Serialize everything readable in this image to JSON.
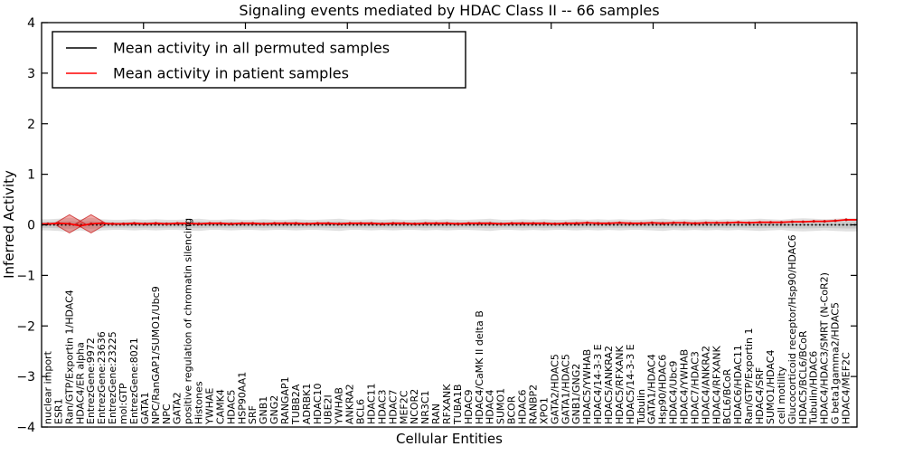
{
  "title": "Signaling events mediated by HDAC Class II -- 66 samples",
  "axes": {
    "x_label": "Cellular Entities",
    "y_label": "Inferred Activity"
  },
  "legend": {
    "permuted_label": "Mean activity in all permuted samples",
    "patient_label": "Mean activity in patient samples"
  },
  "colors": {
    "permuted_line": "#000000",
    "patient_line": "#ff0000",
    "patient_marker": "#d40000",
    "band_outer": "rgba(0,0,0,0.12)",
    "band_inner": "rgba(0,0,0,0.10)",
    "diamond_fill": "rgba(225,45,40,0.40)",
    "diamond_stroke": "rgba(200,30,30,0.75)",
    "spine": "#000000"
  },
  "chart_data": {
    "type": "line",
    "title": "Signaling events mediated by HDAC Class II -- 66 samples",
    "xlabel": "Cellular Entities",
    "ylabel": "Inferred Activity",
    "ylim": [
      -4,
      4
    ],
    "yticks": [
      -4,
      -3,
      -2,
      -1,
      0,
      1,
      2,
      3,
      4
    ],
    "ytick_labels": [
      "−4",
      "−3",
      "−2",
      "−1",
      "0",
      "1",
      "2",
      "3",
      "4"
    ],
    "grid": false,
    "legend_position": "upper left",
    "categories": [
      "nuclear import",
      "ESR1",
      "Ran/GTP/Exportin 1/HDAC4",
      "HDAC4/ER alpha",
      "EntrezGene:9972",
      "EntrezGene:23636",
      "EntrezGene:23225",
      "mol:GTP",
      "EntrezGene:8021",
      "GATA1",
      "NPC/RanGAP1/SUMO1/Ubc9",
      "NPC",
      "GATA2",
      "positive regulation of chromatin silencing",
      "Histones",
      "YWHAE",
      "CAMK4",
      "HDAC5",
      "HSP90AA1",
      "SRF",
      "GNB1",
      "GNG2",
      "RANGAP1",
      "TUBB2A",
      "ADRBK1",
      "HDAC10",
      "UBE2I",
      "YWHAB",
      "ANKRA2",
      "BCL6",
      "HDAC11",
      "HDAC3",
      "HDAC7",
      "MEF2C",
      "NCOR2",
      "NR3C1",
      "RAN",
      "RFXANK",
      "TUBA1B",
      "HDAC9",
      "HDAC4/CaMK II delta B",
      "HDAC4",
      "SUMO1",
      "BCOR",
      "HDAC6",
      "RANBP2",
      "XPO1",
      "GATA2/HDAC5",
      "GATA1/HDAC5",
      "GNB1/GNG2",
      "HDAC5/YWHAB",
      "HDAC4/14-3-3 E",
      "HDAC5/ANKRA2",
      "HDAC5/RFXANK",
      "HDAC5/14-3-3 E",
      "Tubulin",
      "GATA1/HDAC4",
      "Hsp90/HDAC6",
      "HDAC4/Ubc9",
      "HDAC4/YWHAB",
      "HDAC7/HDAC3",
      "HDAC4/ANKRA2",
      "HDAC4/RFXANK",
      "BCL6/BCoR",
      "HDAC6/HDAC11",
      "Ran/GTP/Exportin 1",
      "HDAC4/SRF",
      "SUMO1/HDAC4",
      "cell motility",
      "Glucocorticoid receptor/Hsp90/HDAC6",
      "HDAC5/BCL6/BCoR",
      "Tubulin/HDAC6",
      "HDAC4/HDAC3/SMRT (N-CoR2)",
      "G beta1gamma2/HDAC5",
      "HDAC4/MEF2C"
    ],
    "series": [
      {
        "name": "Mean activity in all permuted samples",
        "color": "#000000",
        "style": "dotted",
        "values": [
          0,
          0,
          0,
          0,
          0,
          0,
          0,
          0,
          0,
          0,
          0,
          0,
          0,
          0,
          0,
          0,
          0,
          0,
          0,
          0,
          0,
          0,
          0,
          0,
          0,
          0,
          0,
          0,
          0,
          0,
          0,
          0,
          0,
          0,
          0,
          0,
          0,
          0,
          0,
          0,
          0,
          0,
          0,
          0,
          0,
          0,
          0,
          0,
          0,
          0,
          0,
          0,
          0,
          0,
          0,
          0,
          0,
          0,
          0,
          0,
          0,
          0,
          0,
          0,
          0,
          0,
          0,
          0,
          0,
          0,
          0,
          0,
          0,
          0,
          0
        ]
      },
      {
        "name": "Mean activity in patient samples",
        "color": "#ff0000",
        "style": "solid",
        "values": [
          0.02,
          0.03,
          0.02,
          -0.02,
          0.02,
          0.03,
          0.02,
          0.02,
          0.03,
          0.02,
          0.03,
          0.02,
          0.03,
          0.03,
          0.02,
          0.03,
          0.03,
          0.02,
          0.03,
          0.03,
          0.02,
          0.03,
          0.03,
          0.03,
          0.02,
          0.03,
          0.03,
          0.02,
          0.03,
          0.03,
          0.03,
          0.02,
          0.03,
          0.03,
          0.02,
          0.03,
          0.03,
          0.03,
          0.02,
          0.03,
          0.03,
          0.03,
          0.02,
          0.03,
          0.03,
          0.03,
          0.03,
          0.02,
          0.03,
          0.03,
          0.04,
          0.03,
          0.03,
          0.04,
          0.03,
          0.03,
          0.04,
          0.03,
          0.04,
          0.04,
          0.03,
          0.04,
          0.04,
          0.04,
          0.05,
          0.04,
          0.05,
          0.05,
          0.05,
          0.06,
          0.06,
          0.07,
          0.07,
          0.08,
          0.1
        ]
      }
    ],
    "permuted_band_half_width": [
      0.11,
      0.12,
      0.14,
      0.11,
      0.14,
      0.11,
      0.1,
      0.1,
      0.11,
      0.1,
      0.11,
      0.1,
      0.1,
      0.11,
      0.12,
      0.1,
      0.1,
      0.11,
      0.1,
      0.1,
      0.11,
      0.1,
      0.1,
      0.11,
      0.1,
      0.1,
      0.11,
      0.12,
      0.1,
      0.1,
      0.11,
      0.1,
      0.11,
      0.1,
      0.1,
      0.11,
      0.1,
      0.11,
      0.1,
      0.1,
      0.11,
      0.12,
      0.1,
      0.1,
      0.11,
      0.1,
      0.11,
      0.1,
      0.1,
      0.11,
      0.1,
      0.11,
      0.1,
      0.11,
      0.1,
      0.1,
      0.11,
      0.12,
      0.1,
      0.11,
      0.1,
      0.11,
      0.1,
      0.11,
      0.1,
      0.11,
      0.12,
      0.11,
      0.1,
      0.12,
      0.13,
      0.12,
      0.11,
      0.12,
      0.13
    ],
    "highlight_diamonds": [
      {
        "category": "Ran/GTP/Exportin 1/HDAC4",
        "index": 2,
        "half_width_points": 1.45,
        "half_height": 0.18
      },
      {
        "category": "EntrezGene:9972",
        "index": 4,
        "half_width_points": 1.45,
        "half_height": 0.18
      }
    ]
  }
}
